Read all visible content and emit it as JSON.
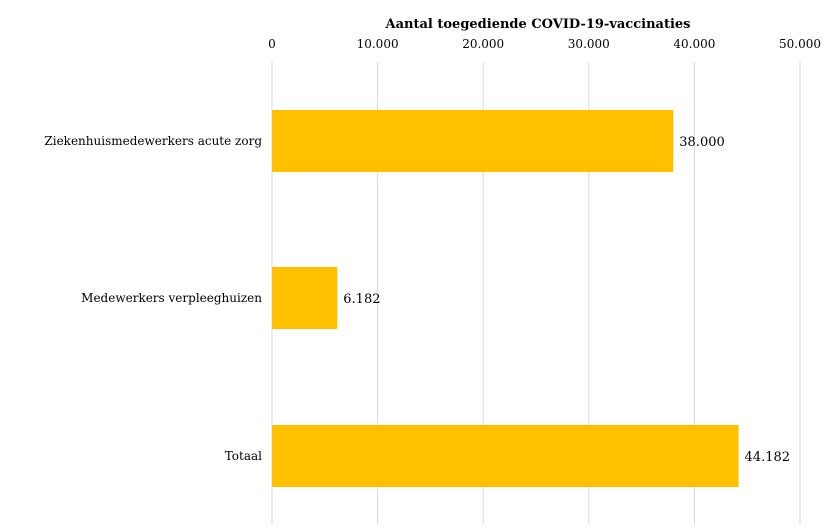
{
  "chart_data": {
    "type": "bar",
    "orientation": "horizontal",
    "title": "",
    "xlabel": "Aantal toegediende COVID-19-vaccinaties",
    "ylabel": "",
    "xlim": [
      0,
      50000
    ],
    "x_ticks": [
      0,
      10000,
      20000,
      30000,
      40000,
      50000
    ],
    "x_tick_labels": [
      "0",
      "10.000",
      "20.000",
      "30.000",
      "40.000",
      "50.000"
    ],
    "x_axis_position": "top",
    "grid": true,
    "legend": "none",
    "bar_color": "#ffc000",
    "categories": [
      "Ziekenhuismedewerkers acute zorg",
      "Medewerkers verpleeghuizen",
      "Totaal"
    ],
    "values": [
      38000,
      6182,
      44182
    ],
    "data_labels": [
      "38.000",
      "6.182",
      "44.182"
    ]
  }
}
